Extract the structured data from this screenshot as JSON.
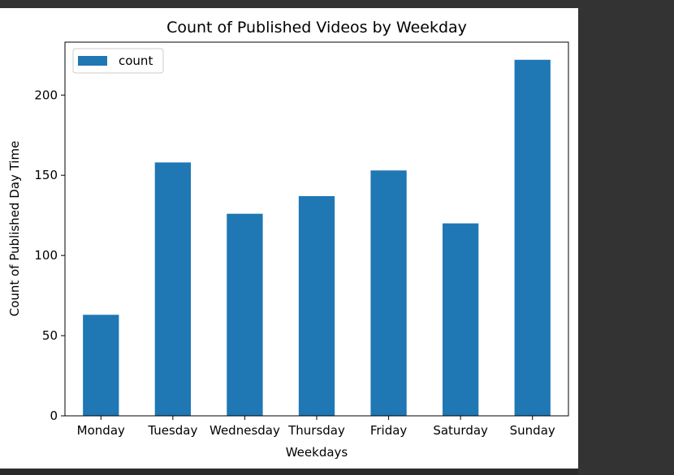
{
  "chart_data": {
    "type": "bar",
    "title": "Count of Published Videos by Weekday",
    "xlabel": "Weekdays",
    "ylabel": "Count of Published Day Time",
    "categories": [
      "Monday",
      "Tuesday",
      "Wednesday",
      "Thursday",
      "Friday",
      "Saturday",
      "Sunday"
    ],
    "series": [
      {
        "name": "count",
        "values": [
          63,
          158,
          126,
          137,
          153,
          120,
          222
        ],
        "color": "#1f77b4"
      }
    ],
    "ylim": [
      0,
      233
    ],
    "yticks": [
      0,
      50,
      100,
      150,
      200
    ],
    "legend": "upper-left",
    "grid": false
  }
}
